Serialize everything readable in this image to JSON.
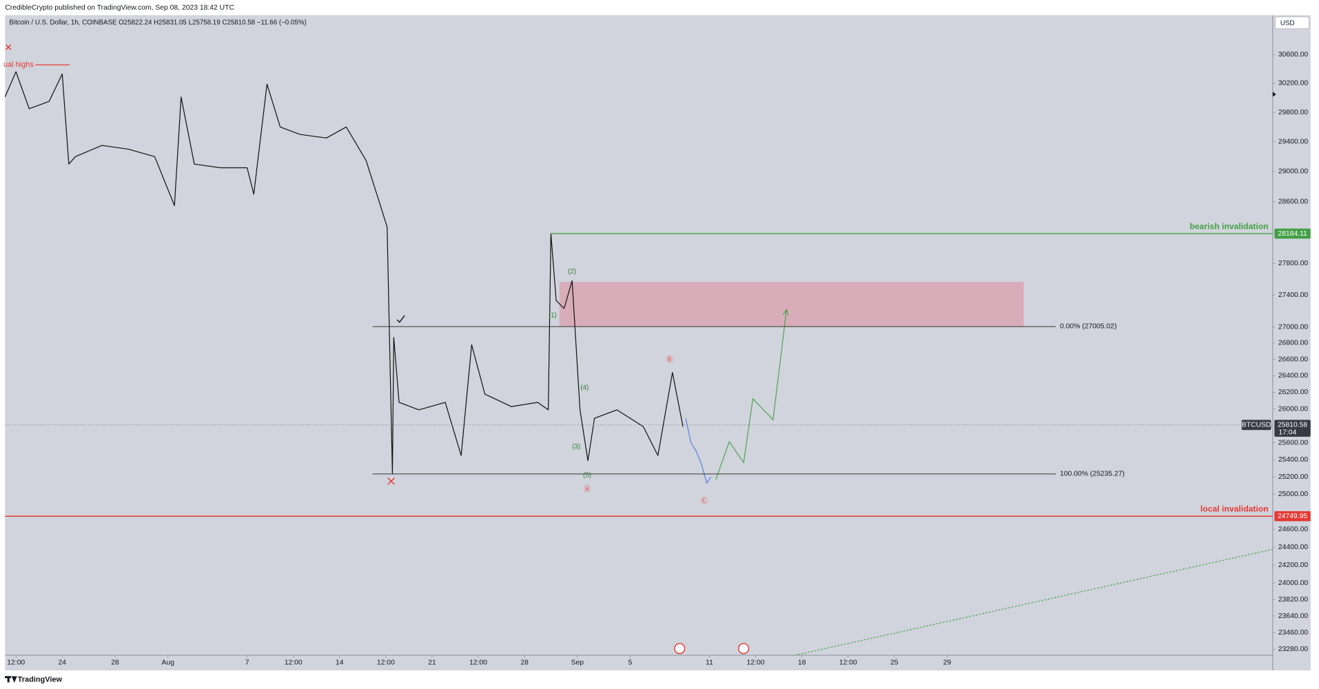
{
  "header": {
    "publisher": "CredibleCrypto published on TradingView.com, Sep 08, 2023 18:42 UTC",
    "legend": "Bitcoin / U.S. Dollar, 1h, COINBASE  O25822.24  H25831.05  L25758.19  C25810.58  −11.66 (−0.05%)",
    "currency_button": "USD",
    "footer_brand": "TradingView"
  },
  "chart_data": {
    "type": "line",
    "log_scale": true,
    "ylim": [
      23217,
      31161
    ],
    "xlim": [
      -0.33,
      95.65
    ],
    "yticks": [
      {
        "value": 30600,
        "label": "30600.00"
      },
      {
        "value": 30200,
        "label": "30200.00"
      },
      {
        "value": 29800,
        "label": "29800.00"
      },
      {
        "value": 29400,
        "label": "29400.00"
      },
      {
        "value": 29000,
        "label": "29000.00"
      },
      {
        "value": 28600,
        "label": "28600.00"
      },
      {
        "value": 27800,
        "label": "27800.00"
      },
      {
        "value": 27400,
        "label": "27400.00"
      },
      {
        "value": 27000,
        "label": "27000.00"
      },
      {
        "value": 26800,
        "label": "26800.00"
      },
      {
        "value": 26600,
        "label": "26600.00"
      },
      {
        "value": 26400,
        "label": "26400.00"
      },
      {
        "value": 26200,
        "label": "26200.00"
      },
      {
        "value": 26000,
        "label": "26000.00"
      },
      {
        "value": 25600,
        "label": "25600.00"
      },
      {
        "value": 25400,
        "label": "25400.00"
      },
      {
        "value": 25200,
        "label": "25200.00"
      },
      {
        "value": 25000,
        "label": "25000.00"
      },
      {
        "value": 24600,
        "label": "24600.00"
      },
      {
        "value": 24400,
        "label": "24400.00"
      },
      {
        "value": 24200,
        "label": "24200.00"
      },
      {
        "value": 24000,
        "label": "24000.00"
      },
      {
        "value": 23820,
        "label": "23820.00"
      },
      {
        "value": 23640,
        "label": "23640.00"
      },
      {
        "value": 23460,
        "label": "23460.00"
      },
      {
        "value": 23280,
        "label": "23280.00"
      }
    ],
    "xticks": [
      {
        "value": 0.5,
        "label": "12:00"
      },
      {
        "value": 4,
        "label": "24"
      },
      {
        "value": 8,
        "label": "28"
      },
      {
        "value": 12,
        "label": "Aug"
      },
      {
        "value": 18,
        "label": "7"
      },
      {
        "value": 21.5,
        "label": "12:00"
      },
      {
        "value": 25,
        "label": "14"
      },
      {
        "value": 28.5,
        "label": "12:00"
      },
      {
        "value": 32,
        "label": "21"
      },
      {
        "value": 35.5,
        "label": "12:00"
      },
      {
        "value": 39,
        "label": "28"
      },
      {
        "value": 43,
        "label": "Sep"
      },
      {
        "value": 47,
        "label": "5"
      },
      {
        "value": 53,
        "label": "11"
      },
      {
        "value": 56.5,
        "label": "12:00"
      },
      {
        "value": 60,
        "label": "18"
      },
      {
        "value": 63.5,
        "label": "12:00"
      },
      {
        "value": 67,
        "label": "25"
      },
      {
        "value": 71,
        "label": "29"
      }
    ],
    "x": [
      -0.33,
      0.5,
      1.5,
      3,
      4,
      4.5,
      5,
      7,
      9,
      11,
      12.5,
      13,
      14,
      16,
      18,
      18.5,
      19.5,
      20.5,
      22,
      24,
      25.5,
      27,
      28,
      28.6,
      29,
      29.1,
      29.5,
      31,
      33,
      34.2,
      35,
      36,
      38,
      40,
      40.8,
      41,
      41.4,
      42,
      42.6,
      43.2,
      43.8,
      44.3,
      46,
      48,
      49.1,
      50.2,
      51,
      51.2,
      51.6,
      52,
      52.4,
      52.8,
      53.1
    ],
    "series": [
      {
        "color": "#111111",
        "values": [
          30014,
          30360,
          29850,
          29950,
          30330,
          29100,
          29200,
          29350,
          29300,
          29200,
          28550,
          30010,
          29100,
          29050,
          29050,
          28700,
          30190,
          29600,
          29500,
          29450,
          29600,
          29150,
          28600,
          28270,
          25235,
          26870,
          26080,
          25990,
          26080,
          25450,
          26780,
          26180,
          26030,
          26080,
          25990,
          28184,
          27330,
          27230,
          27580,
          25990,
          25390,
          25890,
          25990,
          25790,
          25450,
          26440,
          25790,
          null,
          null,
          null,
          null,
          null,
          null
        ]
      },
      {
        "color": "#5b7fe0",
        "values": [
          null,
          null,
          null,
          null,
          null,
          null,
          null,
          null,
          null,
          null,
          null,
          null,
          null,
          null,
          null,
          null,
          null,
          null,
          null,
          null,
          null,
          null,
          null,
          null,
          null,
          null,
          null,
          null,
          null,
          null,
          null,
          null,
          null,
          null,
          null,
          null,
          null,
          null,
          null,
          null,
          null,
          null,
          null,
          null,
          null,
          null,
          null,
          25890,
          25600,
          25500,
          25350,
          25130,
          25200
        ]
      }
    ],
    "levels": [
      {
        "label": "bearish invalidation",
        "value": 28184.11,
        "color": "#43a047"
      },
      {
        "label": "local invalidation",
        "value": 24749.95,
        "color": "#e53935"
      }
    ],
    "fib": [
      {
        "label": "0.00% (27005.02)",
        "value": 27005.02
      },
      {
        "label": "100.00% (25235.27)",
        "value": 25235.27
      }
    ],
    "last_price": {
      "symbol": "BTCUSD",
      "value": 25810.58,
      "countdown": "17:04"
    },
    "annotations": [
      "ual highs",
      "(1)",
      "(2)",
      "(3)",
      "(4)",
      "(5)",
      "Ⓐ",
      "Ⓑ",
      "Ⓒ"
    ]
  }
}
